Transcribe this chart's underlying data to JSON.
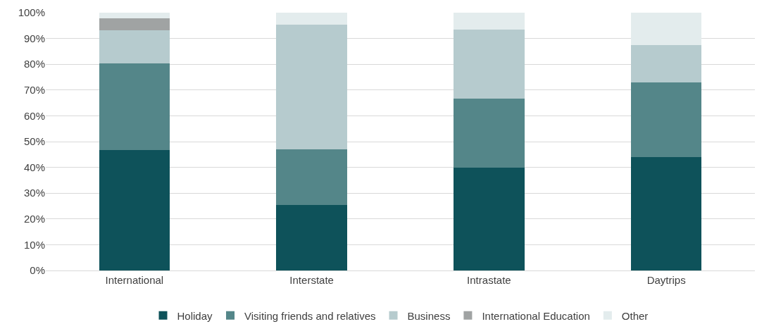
{
  "chart_data": {
    "type": "bar",
    "stacked": true,
    "categories": [
      "International",
      "Interstate",
      "Intrastate",
      "Daytrips"
    ],
    "series": [
      {
        "name": "Holiday",
        "color": "#0e525a",
        "values": [
          46.8,
          25.5,
          40.0,
          44.0
        ]
      },
      {
        "name": "Visiting friends and relatives",
        "color": "#548689",
        "values": [
          33.6,
          21.6,
          26.7,
          28.9
        ]
      },
      {
        "name": "Business",
        "color": "#b6cbce",
        "values": [
          12.9,
          48.2,
          26.7,
          14.4
        ]
      },
      {
        "name": "International Education",
        "color": "#a0a3a3",
        "values": [
          4.6,
          0,
          0,
          0
        ]
      },
      {
        "name": "Other",
        "color": "#e3eced",
        "values": [
          2.1,
          4.7,
          6.6,
          12.7
        ]
      }
    ],
    "ylim": [
      0,
      100
    ],
    "yticks": [
      {
        "value": 0,
        "label": "0%"
      },
      {
        "value": 10,
        "label": "10%"
      },
      {
        "value": 20,
        "label": "20%"
      },
      {
        "value": 30,
        "label": "30%"
      },
      {
        "value": 40,
        "label": "40%"
      },
      {
        "value": 50,
        "label": "50%"
      },
      {
        "value": 60,
        "label": "60%"
      },
      {
        "value": 70,
        "label": "70%"
      },
      {
        "value": 80,
        "label": "80%"
      },
      {
        "value": 90,
        "label": "90%"
      },
      {
        "value": 100,
        "label": "100%"
      }
    ],
    "grid": "y",
    "legend": "bottom"
  }
}
